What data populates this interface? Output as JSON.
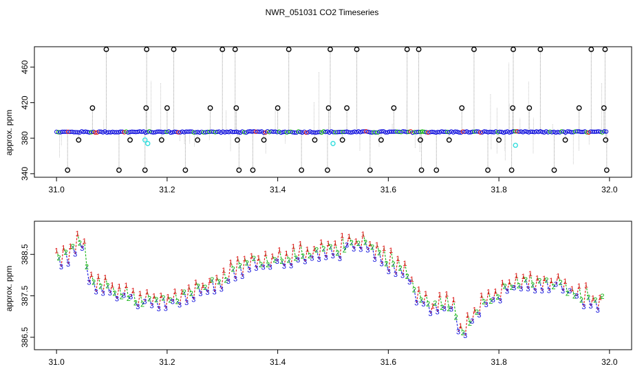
{
  "page": {
    "title": "NWR_051031  CO2 Timeseries"
  },
  "colors": {
    "black": "#000000",
    "gray": "#9a9a9a",
    "blue": "#1010dd",
    "cyan": "#33dddd",
    "green": "#12b312",
    "red": "#dd1111"
  },
  "chart_data": [
    {
      "type": "scatter",
      "title": "NWR_051031  CO2 Timeseries",
      "xlabel": "",
      "ylabel": "approx. ppm",
      "xlim": [
        31.0,
        32.0
      ],
      "ylim": [
        340,
        480
      ],
      "x_ticks": [
        "31.0",
        "31.2",
        "31.4",
        "31.6",
        "31.8",
        "32.0"
      ],
      "y_ticks": [
        "340",
        "380",
        "420",
        "460"
      ],
      "x_tick_values": [
        31.0,
        31.2,
        31.4,
        31.6,
        31.8,
        32.0
      ],
      "y_tick_values": [
        340,
        380,
        420,
        460
      ],
      "baseline": 387,
      "series": [
        {
          "marker": "black-circle",
          "points": [
            [
              31.02,
              344
            ],
            [
              31.04,
              378
            ],
            [
              31.065,
              414
            ],
            [
              31.09,
              480
            ],
            [
              31.113,
              344
            ],
            [
              31.133,
              378
            ],
            [
              31.16,
              344
            ],
            [
              31.162,
              414
            ],
            [
              31.163,
              480
            ],
            [
              31.19,
              378
            ],
            [
              31.2,
              414
            ],
            [
              31.212,
              480
            ],
            [
              31.233,
              344
            ],
            [
              31.255,
              378
            ],
            [
              31.278,
              414
            ],
            [
              31.3,
              480
            ],
            [
              31.323,
              480
            ],
            [
              31.325,
              414
            ],
            [
              31.327,
              378
            ],
            [
              31.33,
              344
            ],
            [
              31.355,
              344
            ],
            [
              31.375,
              378
            ],
            [
              31.4,
              414
            ],
            [
              31.42,
              480
            ],
            [
              31.443,
              344
            ],
            [
              31.467,
              378
            ],
            [
              31.49,
              344
            ],
            [
              31.492,
              414
            ],
            [
              31.495,
              480
            ],
            [
              31.517,
              378
            ],
            [
              31.525,
              414
            ],
            [
              31.543,
              480
            ],
            [
              31.567,
              344
            ],
            [
              31.587,
              378
            ],
            [
              31.61,
              414
            ],
            [
              31.634,
              480
            ],
            [
              31.655,
              480
            ],
            [
              31.658,
              378
            ],
            [
              31.66,
              344
            ],
            [
              31.687,
              344
            ],
            [
              31.71,
              378
            ],
            [
              31.733,
              414
            ],
            [
              31.755,
              480
            ],
            [
              31.78,
              344
            ],
            [
              31.8,
              378
            ],
            [
              31.823,
              344
            ],
            [
              31.825,
              414
            ],
            [
              31.826,
              480
            ],
            [
              31.855,
              414
            ],
            [
              31.875,
              480
            ],
            [
              31.9,
              344
            ],
            [
              31.92,
              378
            ],
            [
              31.945,
              414
            ],
            [
              31.967,
              480
            ],
            [
              31.99,
              414
            ],
            [
              31.992,
              480
            ],
            [
              31.993,
              378
            ],
            [
              31.995,
              344
            ]
          ]
        },
        {
          "marker": "cyan-circle",
          "points": [
            [
              31.16,
              378
            ],
            [
              31.165,
              374
            ],
            [
              31.5,
              374
            ],
            [
              31.83,
              372
            ]
          ]
        }
      ]
    },
    {
      "type": "line",
      "title": "",
      "xlabel": "",
      "ylabel": "approx. ppm",
      "xlim": [
        31.0,
        32.0
      ],
      "ylim": [
        386.2,
        389.3
      ],
      "x_ticks": [
        "31.0",
        "31.2",
        "31.4",
        "31.6",
        "31.8",
        "32.0"
      ],
      "y_ticks": [
        "386.5",
        "387.5",
        "388.5"
      ],
      "x_tick_values": [
        31.0,
        31.2,
        31.4,
        31.6,
        31.8,
        32.0
      ],
      "y_tick_values": [
        386.5,
        387.5,
        388.5
      ],
      "trend": {
        "x": [
          31.0,
          31.02,
          31.04,
          31.05,
          31.06,
          31.1,
          31.15,
          31.2,
          31.23,
          31.25,
          31.3,
          31.35,
          31.4,
          31.45,
          31.5,
          31.55,
          31.6,
          31.63,
          31.65,
          31.68,
          31.7,
          31.72,
          31.73,
          31.76,
          31.8,
          31.84,
          31.86,
          31.9,
          31.95,
          31.98
        ],
        "y": [
          388.3,
          388.5,
          388.9,
          388.7,
          387.85,
          387.7,
          387.4,
          387.4,
          387.5,
          387.6,
          387.9,
          388.3,
          388.4,
          388.45,
          388.6,
          388.85,
          388.35,
          388.1,
          387.55,
          387.2,
          387.35,
          387.2,
          386.6,
          387.2,
          387.55,
          387.85,
          387.75,
          387.8,
          387.5,
          387.4
        ]
      },
      "series": [
        {
          "name": "1",
          "marker": "label-1",
          "offset": 0.16
        },
        {
          "name": "2",
          "marker": "label-2",
          "offset": 0.0
        },
        {
          "name": "3",
          "marker": "label-3",
          "offset": -0.14
        }
      ]
    }
  ]
}
